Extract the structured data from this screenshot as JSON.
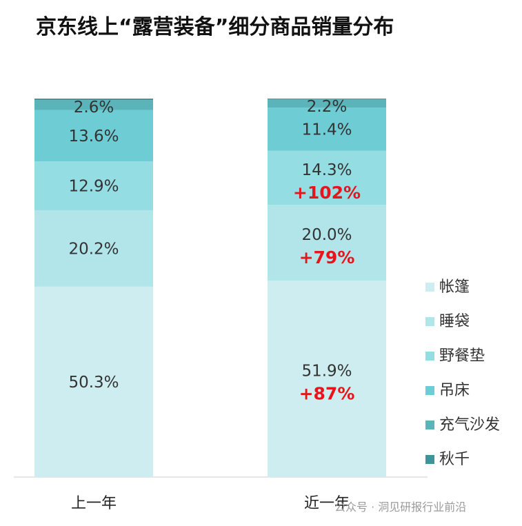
{
  "title": "京东线上“露营装备”细分商品销量分布",
  "footer": "公众号 · 洞见研报行业前沿",
  "chart_data": {
    "type": "bar",
    "stacked": true,
    "percent": true,
    "title": "京东线上“露营装备”细分商品销量分布",
    "categories": [
      "上一年",
      "近一年"
    ],
    "ylim": [
      0,
      100
    ],
    "legend_position": "right",
    "grid": false,
    "series": [
      {
        "name": "帐篷",
        "values": [
          50.3,
          51.9
        ],
        "labels": [
          "50.3%",
          "51.9%"
        ],
        "growth": [
          null,
          "+87%"
        ],
        "color": "#cdedf0"
      },
      {
        "name": "睡袋",
        "values": [
          20.2,
          20.0
        ],
        "labels": [
          "20.2%",
          "20.0%"
        ],
        "growth": [
          null,
          "+79%"
        ],
        "color": "#b2e5ea"
      },
      {
        "name": "野餐垫",
        "values": [
          12.9,
          14.3
        ],
        "labels": [
          "12.9%",
          "14.3%"
        ],
        "growth": [
          null,
          "+102%"
        ],
        "color": "#93dde3"
      },
      {
        "name": "吊床",
        "values": [
          13.6,
          11.4
        ],
        "labels": [
          "13.6%",
          "11.4%"
        ],
        "growth": [
          null,
          null
        ],
        "color": "#6dccd4"
      },
      {
        "name": "充气沙发",
        "values": [
          2.6,
          2.2
        ],
        "labels": [
          "2.6%",
          "2.2%"
        ],
        "growth": [
          null,
          null
        ],
        "color": "#5ab4b9"
      },
      {
        "name": "秋千",
        "values": [
          0.4,
          0.2
        ],
        "labels": [
          "",
          ""
        ],
        "growth": [
          null,
          null
        ],
        "color": "#3f9499"
      }
    ]
  }
}
